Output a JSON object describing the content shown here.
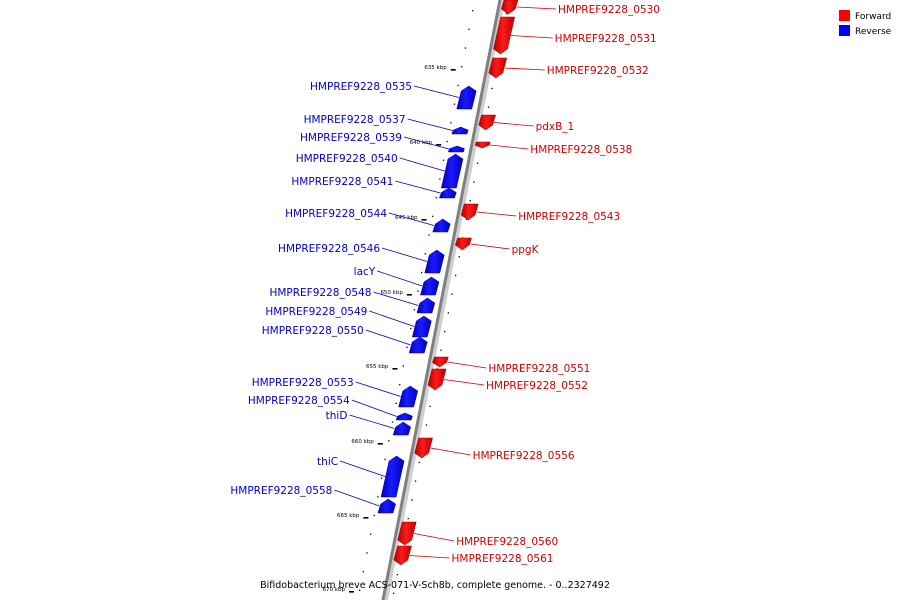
{
  "title": "Bifidobacterium breve ACS-071-V-Sch8b, complete genome. - 0..2327492",
  "legend": [
    {
      "label": "Forward",
      "color": "#ff0000"
    },
    {
      "label": "Reverse",
      "color": "#0000ff"
    }
  ],
  "scale_labels": [
    "635 kbp",
    "640 kbp",
    "645 kbp",
    "650 kbp",
    "655 kbp",
    "660 kbp",
    "665 kbp",
    "670 kbp"
  ],
  "genes": [
    {
      "name": "HMPREF9228_0530",
      "strand": "forward"
    },
    {
      "name": "HMPREF9228_0531",
      "strand": "forward"
    },
    {
      "name": "HMPREF9228_0532",
      "strand": "forward"
    },
    {
      "name": "HMPREF9228_0535",
      "strand": "reverse"
    },
    {
      "name": "HMPREF9228_0537",
      "strand": "reverse"
    },
    {
      "name": "pdxB_1",
      "strand": "forward"
    },
    {
      "name": "HMPREF9228_0539",
      "strand": "reverse"
    },
    {
      "name": "HMPREF9228_0538",
      "strand": "forward"
    },
    {
      "name": "HMPREF9228_0540",
      "strand": "reverse"
    },
    {
      "name": "HMPREF9228_0541",
      "strand": "reverse"
    },
    {
      "name": "HMPREF9228_0544",
      "strand": "reverse"
    },
    {
      "name": "HMPREF9228_0543",
      "strand": "forward"
    },
    {
      "name": "ppgK",
      "strand": "forward"
    },
    {
      "name": "HMPREF9228_0546",
      "strand": "reverse"
    },
    {
      "name": "lacY",
      "strand": "reverse"
    },
    {
      "name": "HMPREF9228_0548",
      "strand": "reverse"
    },
    {
      "name": "HMPREF9228_0549",
      "strand": "reverse"
    },
    {
      "name": "HMPREF9228_0550",
      "strand": "reverse"
    },
    {
      "name": "HMPREF9228_0551",
      "strand": "forward"
    },
    {
      "name": "HMPREF9228_0552",
      "strand": "forward"
    },
    {
      "name": "HMPREF9228_0553",
      "strand": "reverse"
    },
    {
      "name": "HMPREF9228_0554",
      "strand": "reverse"
    },
    {
      "name": "thiD",
      "strand": "reverse"
    },
    {
      "name": "HMPREF9228_0556",
      "strand": "forward"
    },
    {
      "name": "thiC",
      "strand": "reverse"
    },
    {
      "name": "HMPREF9228_0558",
      "strand": "reverse"
    },
    {
      "name": "HMPREF9228_0560",
      "strand": "forward"
    },
    {
      "name": "HMPREF9228_0561",
      "strand": "forward"
    }
  ]
}
